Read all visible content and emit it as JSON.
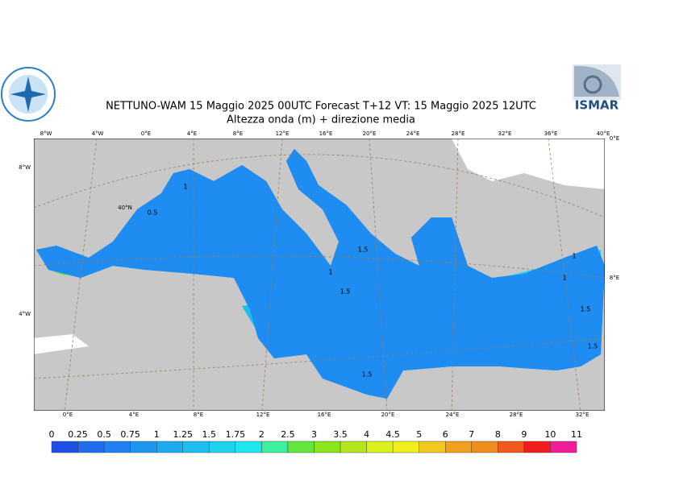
{
  "header": {
    "title": "NETTUNO-WAM  15   Maggio  2025 00UTC Forecast T+12 VT: 15   Maggio  2025 12UTC",
    "subtitle": "Altezza onda (m) + direzione media",
    "logo_text": "ISMAR"
  },
  "map": {
    "top_labels": [
      "8°W",
      "4°W",
      "0°E",
      "4°E",
      "8°E",
      "12°E",
      "16°E",
      "20°E",
      "24°E",
      "28°E",
      "32°E",
      "36°E",
      "40°E"
    ],
    "bottom_labels": [
      "0°E",
      "4°E",
      "8°E",
      "12°E",
      "16°E",
      "20°E",
      "24°E",
      "28°E",
      "32°E"
    ],
    "left_labels": [
      "8°W",
      "4°W"
    ],
    "right_labels": [
      "0°E",
      "8°E"
    ],
    "inner_labels": [
      "40°N"
    ],
    "contour_labels": [
      "1",
      "0.5",
      "1.5",
      "1",
      "1.5",
      "1.5",
      "1.5",
      "1",
      "1.5",
      "1"
    ]
  },
  "colorbar": {
    "ticks": [
      0,
      0.25,
      0.5,
      0.75,
      1,
      1.25,
      1.5,
      1.75,
      2,
      2.5,
      3,
      3.5,
      4,
      4.5,
      5,
      6,
      7,
      8,
      9,
      10,
      11
    ],
    "colors": [
      "#1e50e6",
      "#1e6eec",
      "#1e82f0",
      "#1e96f0",
      "#1eaaf0",
      "#1ebef0",
      "#1ed2f0",
      "#1ee6f0",
      "#3cf0a0",
      "#64e63c",
      "#8ce61e",
      "#b4e61e",
      "#dcf01e",
      "#f0f01e",
      "#f0c81e",
      "#f0a01e",
      "#f08c1e",
      "#f05a1e",
      "#f01e1e",
      "#f01e96"
    ]
  }
}
